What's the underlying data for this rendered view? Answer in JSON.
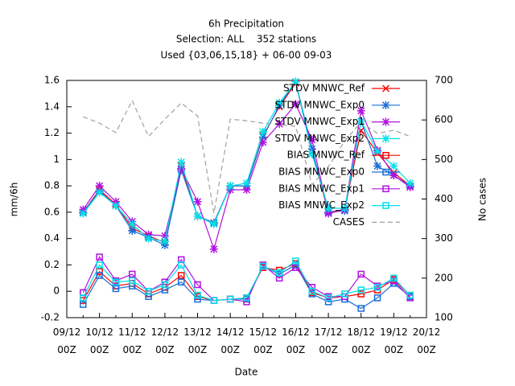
{
  "chart_data": {
    "type": "line",
    "title": "6h Precipitation",
    "subtitle": "Selection: ALL    352 stations",
    "subtitle2": "Used {03,06,15,18} + 06-00 09-03",
    "xlabel": "Date",
    "ylabel": "mm/6h",
    "y2label": "No cases",
    "legend": "top right",
    "categories": [
      "09/12 00Z",
      null,
      "10/12 00Z",
      null,
      "11/12 00Z",
      null,
      "12/12 00Z",
      null,
      "13/12 00Z",
      null,
      "14/12 00Z",
      null,
      "15/12 00Z",
      null,
      "16/12 00Z",
      null,
      "17/12 00Z",
      null,
      "18/12 00Z",
      null,
      "19/12 00Z",
      null,
      "20/12 00Z"
    ],
    "ylim": [
      -0.2,
      1.6
    ],
    "yticks": [
      -0.2,
      0,
      0.2,
      0.4,
      0.6,
      0.8,
      1,
      1.2,
      1.4,
      1.6
    ],
    "y2lim": [
      100,
      700
    ],
    "y2ticks": [
      100,
      200,
      300,
      400,
      500,
      600,
      700
    ],
    "series": [
      {
        "name": "STDV MNWC_Ref",
        "color": "#ff0000",
        "marker": "x",
        "values": [
          null,
          0.6,
          0.77,
          0.66,
          0.48,
          0.42,
          0.37,
          0.95,
          0.57,
          0.52,
          0.8,
          0.8,
          1.18,
          1.4,
          1.58,
          1.06,
          0.6,
          0.62,
          1.22,
          1.05,
          0.9,
          0.8,
          null
        ]
      },
      {
        "name": "STDV MNWC_Exp0",
        "color": "#1a6fd8",
        "marker": "star",
        "values": [
          null,
          0.6,
          0.76,
          0.65,
          0.46,
          0.41,
          0.35,
          0.92,
          0.57,
          0.52,
          0.8,
          0.8,
          1.17,
          1.41,
          1.59,
          1.08,
          0.6,
          0.61,
          1.29,
          0.95,
          0.88,
          0.8,
          null
        ]
      },
      {
        "name": "STDV MNWC_Exp1",
        "color": "#b010e0",
        "marker": "star",
        "values": [
          null,
          0.62,
          0.8,
          0.68,
          0.53,
          0.43,
          0.42,
          0.93,
          0.68,
          0.32,
          0.77,
          0.77,
          1.13,
          1.27,
          1.42,
          1.15,
          0.59,
          0.62,
          1.37,
          1.07,
          0.88,
          0.79,
          null
        ]
      },
      {
        "name": "STDV MNWC_Exp2",
        "color": "#00e0e8",
        "marker": "star",
        "values": [
          null,
          0.59,
          0.75,
          0.65,
          0.51,
          0.4,
          0.38,
          0.98,
          0.57,
          0.51,
          0.8,
          0.82,
          1.21,
          1.43,
          1.59,
          1.04,
          0.63,
          0.63,
          1.29,
          1.06,
          0.95,
          0.82,
          null
        ]
      },
      {
        "name": "BIAS MNWC_Ref",
        "color": "#ff0000",
        "marker": "square",
        "values": [
          null,
          -0.07,
          0.15,
          0.04,
          0.06,
          -0.02,
          0.03,
          0.12,
          -0.04,
          -0.07,
          -0.06,
          -0.05,
          0.18,
          0.16,
          0.21,
          -0.01,
          -0.05,
          -0.04,
          -0.02,
          0.01,
          0.09,
          -0.03,
          null
        ]
      },
      {
        "name": "BIAS MNWC_Exp0",
        "color": "#1a6fd8",
        "marker": "square",
        "values": [
          null,
          -0.1,
          0.12,
          0.02,
          0.04,
          -0.04,
          0.01,
          0.07,
          -0.06,
          -0.07,
          -0.06,
          -0.06,
          0.19,
          0.13,
          0.2,
          -0.02,
          -0.08,
          -0.06,
          -0.13,
          -0.05,
          0.06,
          -0.04,
          null
        ]
      },
      {
        "name": "BIAS MNWC_Exp1",
        "color": "#b010e0",
        "marker": "square",
        "values": [
          null,
          -0.01,
          0.26,
          0.08,
          0.13,
          0.0,
          0.07,
          0.24,
          0.05,
          -0.07,
          -0.06,
          -0.08,
          0.2,
          0.1,
          0.18,
          0.03,
          -0.04,
          -0.04,
          0.13,
          0.04,
          0.08,
          -0.05,
          null
        ]
      },
      {
        "name": "BIAS MNWC_Exp2",
        "color": "#00e0e8",
        "marker": "square",
        "values": [
          null,
          -0.05,
          0.2,
          0.07,
          0.08,
          0.0,
          0.05,
          0.2,
          -0.03,
          -0.07,
          -0.06,
          -0.05,
          0.19,
          0.14,
          0.23,
          0.0,
          -0.05,
          -0.02,
          0.01,
          0.03,
          0.1,
          -0.03,
          null
        ]
      },
      {
        "name": "CASES",
        "color": "#a0a0a0",
        "marker": "none",
        "dashed": true,
        "axis": "y2",
        "values": [
          null,
          608,
          592,
          568,
          649,
          558,
          602,
          643,
          610,
          364,
          602,
          598,
          592,
          588,
          584,
          436,
          482,
          547,
          594,
          566,
          574,
          558,
          null
        ]
      }
    ]
  }
}
